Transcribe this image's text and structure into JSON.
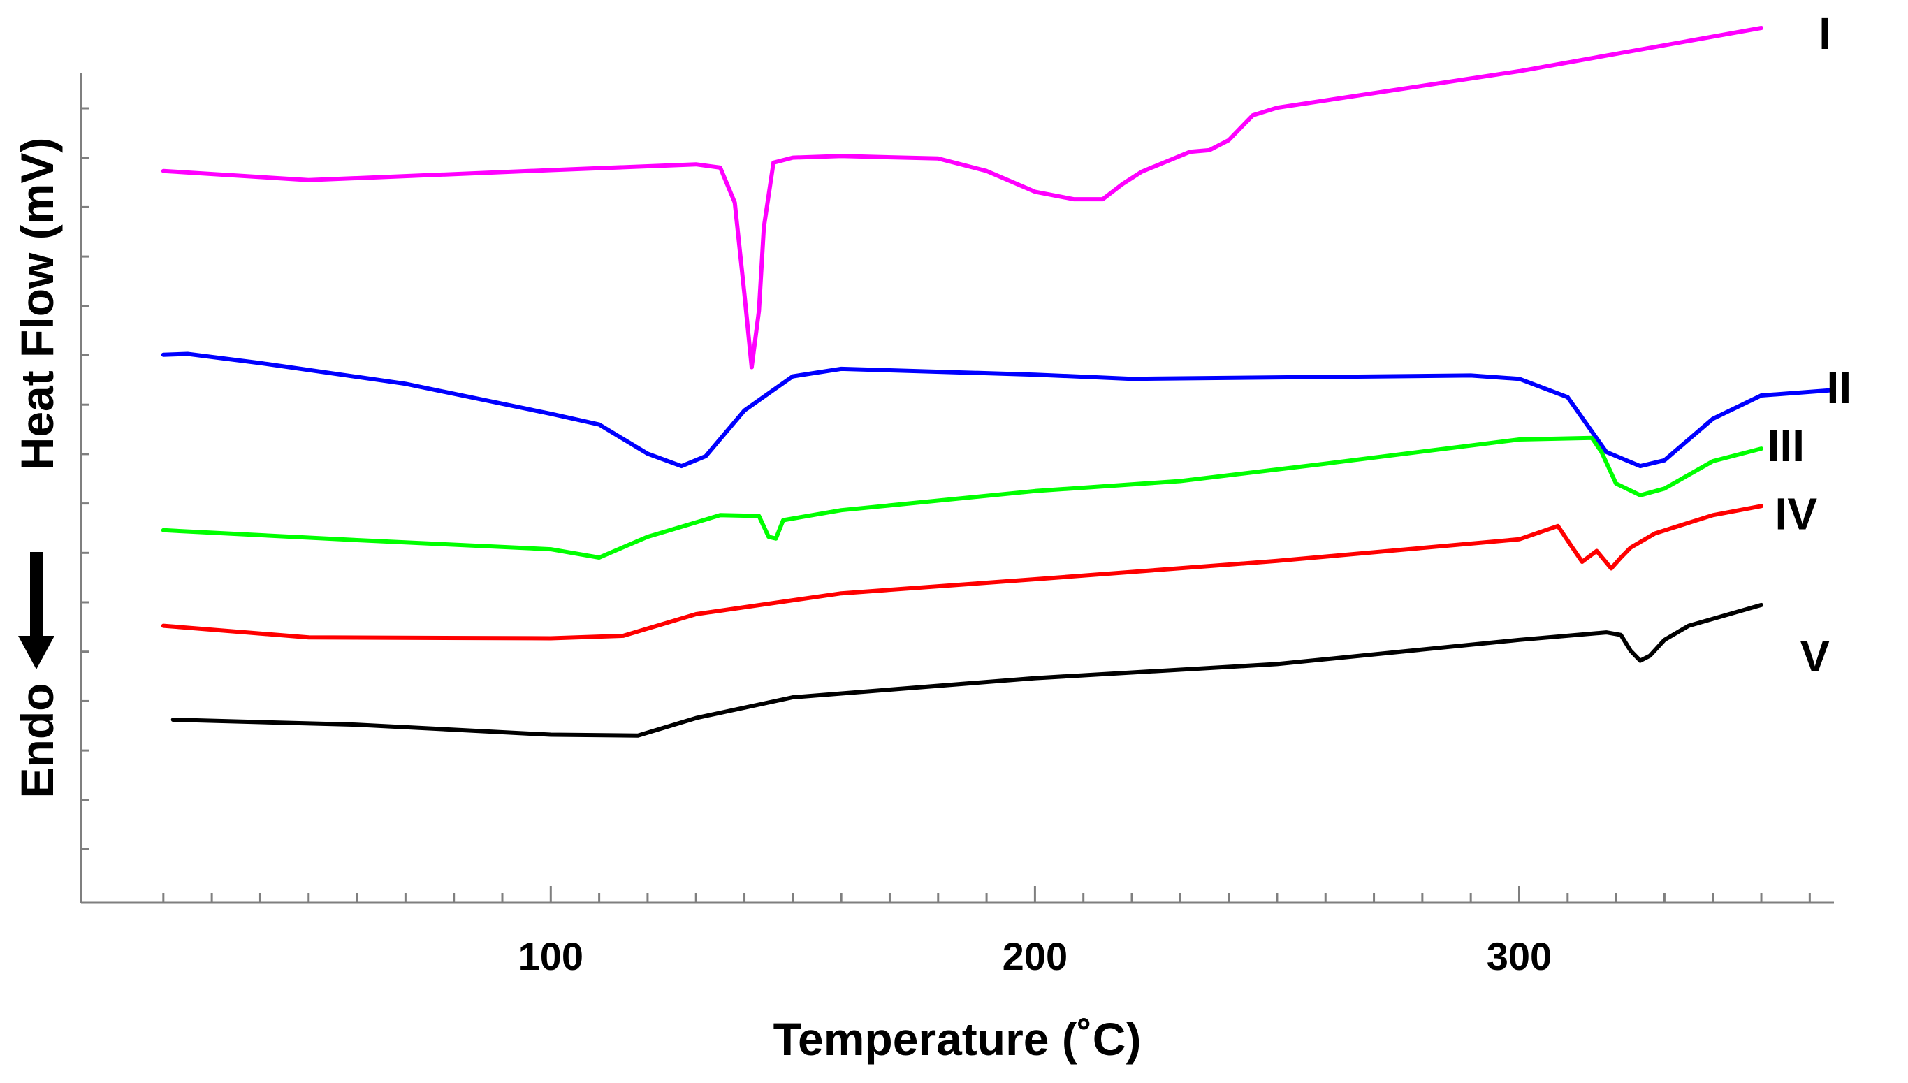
{
  "chart_data": {
    "type": "line",
    "title": "",
    "xlabel": "Temperature (˚C)",
    "ylabel": "Heat Flow (mV)",
    "yannotation": "Endo",
    "xlim": [
      3,
      365
    ],
    "ylim": [
      0,
      100
    ],
    "xticks": [
      100,
      200,
      300
    ],
    "xtick_labels": [
      "100",
      "200",
      "300"
    ],
    "grid": false,
    "series": [
      {
        "name": "I",
        "color": "#ff00ff",
        "x": [
          20,
          50,
          100,
          130,
          135,
          138,
          140,
          141.5,
          143,
          144,
          146,
          150,
          160,
          180,
          190,
          200,
          208,
          214,
          218,
          222,
          232,
          236,
          240,
          245,
          250,
          300,
          350
        ],
        "y": [
          82.8,
          81.7,
          82.9,
          83.6,
          83.2,
          79,
          68,
          59.2,
          66,
          76,
          83.8,
          84.4,
          84.6,
          84.3,
          82.8,
          80.3,
          79.4,
          79.4,
          81.2,
          82.7,
          85.1,
          85.3,
          86.5,
          89.5,
          90.4,
          94.8,
          100
        ]
      },
      {
        "name": "II",
        "color": "#0000ff",
        "x": [
          20,
          25,
          40,
          70,
          100,
          110,
          120,
          127,
          132,
          140,
          150,
          160,
          200,
          220,
          290,
          300,
          310,
          318,
          325,
          330,
          340,
          350,
          364
        ],
        "y": [
          60.7,
          60.8,
          59.7,
          57.2,
          53.6,
          52.3,
          48.8,
          47.3,
          48.5,
          54,
          58.1,
          59,
          58.3,
          57.8,
          58.2,
          57.8,
          55.6,
          49,
          47.3,
          48,
          53,
          55.8,
          56.4
        ]
      },
      {
        "name": "III",
        "color": "#00ff00",
        "x": [
          20,
          60,
          100,
          110,
          120,
          135,
          143,
          145,
          146.5,
          148,
          160,
          200,
          230,
          260,
          300,
          315,
          317,
          320,
          325,
          330,
          340,
          350
        ],
        "y": [
          39.6,
          38.4,
          37.3,
          36.3,
          38.8,
          41.4,
          41.3,
          38.8,
          38.6,
          40.8,
          42,
          44.3,
          45.5,
          47.6,
          50.5,
          50.7,
          49,
          45.2,
          43.8,
          44.6,
          47.9,
          49.4
        ]
      },
      {
        "name": "IV",
        "color": "#ff0000",
        "x": [
          20,
          50,
          100,
          115,
          130,
          160,
          200,
          250,
          300,
          308,
          311,
          313,
          316,
          319,
          321,
          323,
          328,
          340,
          350
        ],
        "y": [
          28.1,
          26.7,
          26.6,
          26.9,
          29.5,
          32,
          33.7,
          35.9,
          38.5,
          40.1,
          37.5,
          35.8,
          37.1,
          35,
          36.3,
          37.5,
          39.2,
          41.4,
          42.5
        ]
      },
      {
        "name": "V",
        "color": "#000000",
        "x": [
          22,
          60,
          100,
          118,
          130,
          150,
          200,
          250,
          300,
          318,
          321,
          323,
          325,
          327,
          330,
          335,
          350
        ],
        "y": [
          16.8,
          16.2,
          15,
          14.9,
          17,
          19.5,
          21.8,
          23.5,
          26.4,
          27.3,
          27,
          25.1,
          23.9,
          24.5,
          26.4,
          28.1,
          30.6
        ]
      }
    ],
    "series_labels": [
      "I",
      "II",
      "III",
      "IV",
      "V"
    ]
  },
  "colors": {
    "axis": "#7f7f7f",
    "text": "#000000"
  }
}
